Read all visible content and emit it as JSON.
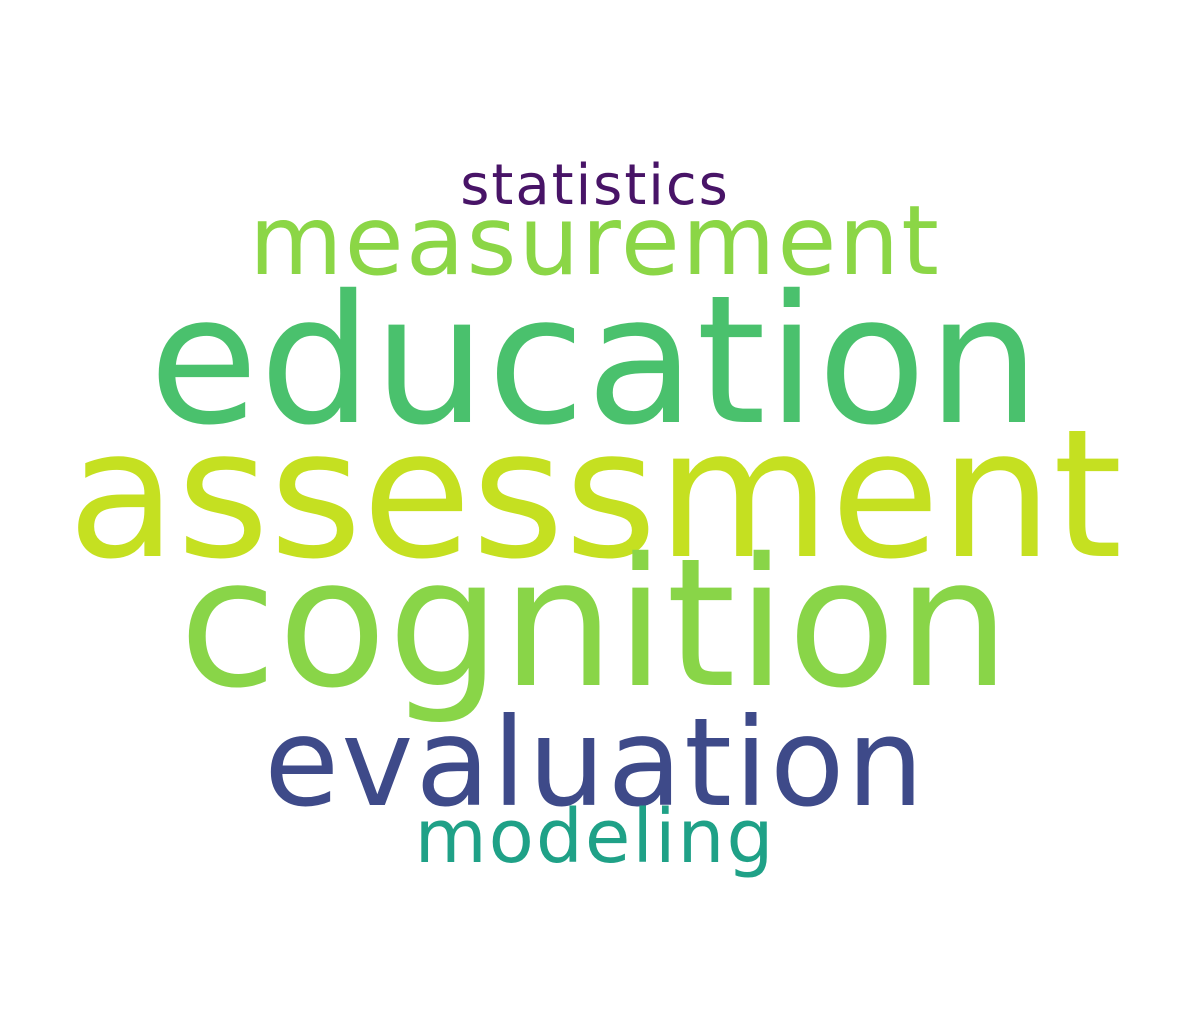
{
  "word_cloud": {
    "words": [
      {
        "id": "statistics",
        "text": "statistics",
        "color": "#481467"
      },
      {
        "id": "measurement",
        "text": "measurement",
        "color": "#8bd646"
      },
      {
        "id": "education",
        "text": "education",
        "color": "#4ac16d"
      },
      {
        "id": "assessment",
        "text": "assessment",
        "color": "#c5e021"
      },
      {
        "id": "cognition",
        "text": "cognition",
        "color": "#89d548"
      },
      {
        "id": "evaluation",
        "text": "evaluation",
        "color": "#3e4a89"
      },
      {
        "id": "modeling",
        "text": "modeling",
        "color": "#1fa187"
      }
    ]
  }
}
